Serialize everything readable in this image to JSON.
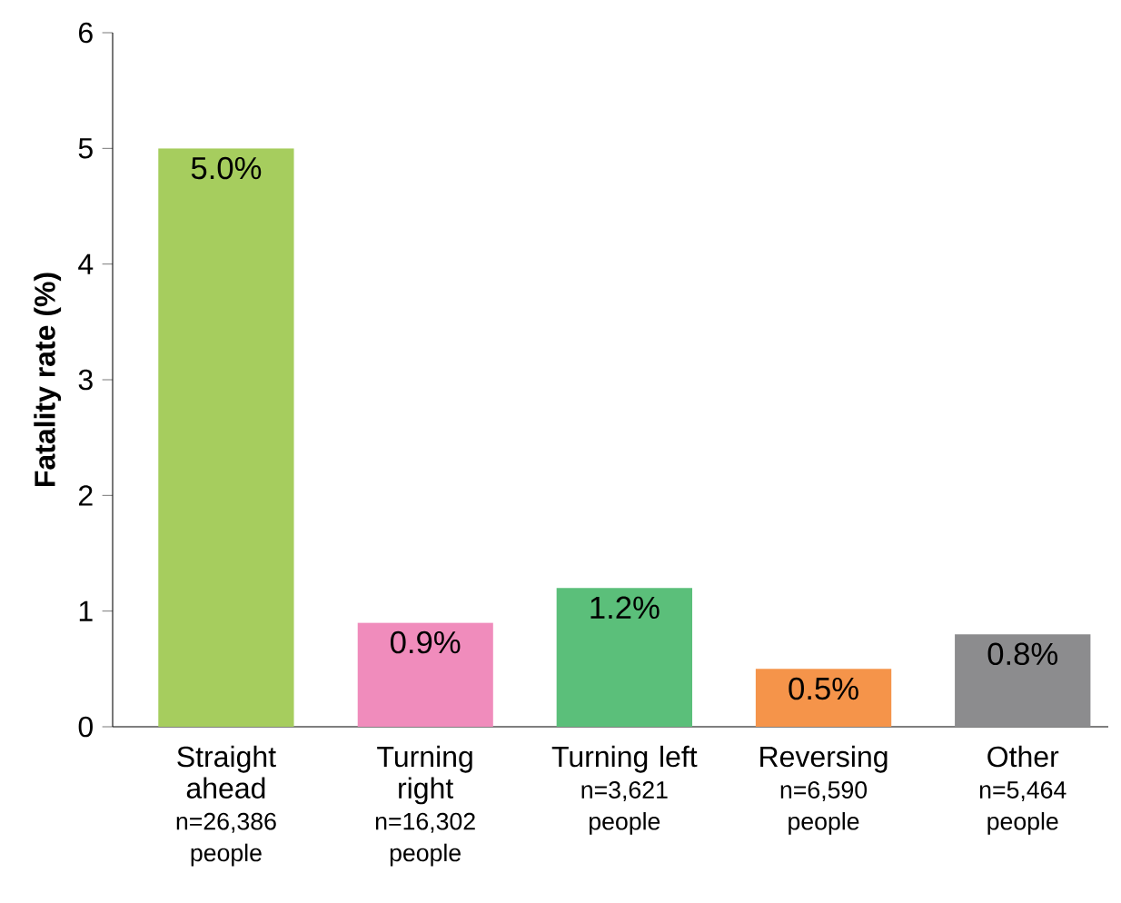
{
  "chart_data": {
    "type": "bar",
    "ylabel": "Fatality rate (%)",
    "categories": [
      "Straight ahead",
      "Turning right",
      "Turning left",
      "Reversing",
      "Other"
    ],
    "values": [
      5.0,
      0.9,
      1.2,
      0.5,
      0.8
    ],
    "colors": [
      "#a6cd5e",
      "#f08cbc",
      "#5bbf7a",
      "#f5944a",
      "#8c8c8e"
    ],
    "value_labels": [
      "5.0%",
      "0.9%",
      "1.2%",
      "0.5%",
      "0.8%"
    ],
    "annotations": [
      "n=26,386 people",
      "n=16,302 people",
      "n=3,621 people",
      "n=6,590 people",
      "n=5,464 people"
    ],
    "ylim": [
      0,
      6
    ],
    "yticks": [
      0,
      1,
      2,
      3,
      4,
      5,
      6
    ]
  }
}
